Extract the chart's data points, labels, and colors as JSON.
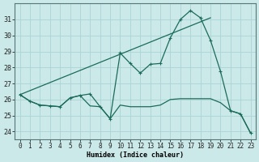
{
  "xlabel": "Humidex (Indice chaleur)",
  "background_color": "#cce9e9",
  "grid_color": "#aad4d4",
  "line_color": "#1a6b5a",
  "xlim": [
    -0.5,
    23.5
  ],
  "ylim": [
    23.5,
    32.0
  ],
  "yticks": [
    24,
    25,
    26,
    27,
    28,
    29,
    30,
    31
  ],
  "xticks": [
    0,
    1,
    2,
    3,
    4,
    5,
    6,
    7,
    8,
    9,
    10,
    11,
    12,
    13,
    14,
    15,
    16,
    17,
    18,
    19,
    20,
    21,
    22,
    23
  ],
  "line_jagged_x": [
    0,
    1,
    2,
    3,
    4,
    5,
    6,
    7,
    8,
    9,
    10,
    11,
    12,
    13,
    14,
    15,
    16,
    17,
    18,
    19,
    20,
    21,
    22,
    23
  ],
  "line_jagged_y": [
    26.3,
    25.9,
    25.65,
    25.6,
    25.55,
    26.1,
    26.25,
    26.35,
    25.55,
    24.8,
    28.9,
    28.25,
    27.65,
    28.2,
    28.25,
    29.85,
    31.0,
    31.55,
    31.1,
    29.7,
    27.75,
    25.3,
    25.1,
    23.9
  ],
  "line_trend_x": [
    0,
    19
  ],
  "line_trend_y": [
    26.3,
    31.1
  ],
  "line_descend_x": [
    0,
    1,
    2,
    3,
    4,
    5,
    6,
    7,
    8,
    9,
    10,
    11,
    12,
    13,
    14,
    15,
    16,
    17,
    18,
    19,
    20,
    21,
    22,
    23
  ],
  "line_descend_y": [
    26.3,
    25.9,
    25.65,
    25.6,
    25.55,
    26.1,
    26.25,
    25.6,
    25.55,
    24.8,
    25.65,
    25.55,
    25.55,
    25.55,
    25.65,
    26.0,
    26.05,
    26.05,
    26.05,
    26.05,
    25.8,
    25.3,
    25.1,
    23.9
  ],
  "xlabel_fontsize": 6.0,
  "tick_fontsize": 5.5
}
